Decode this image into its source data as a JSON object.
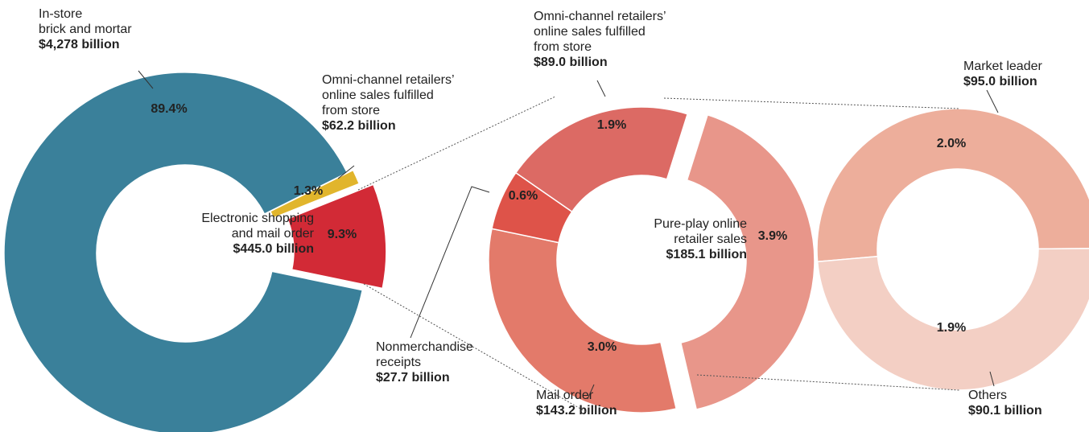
{
  "chart_data": [
    {
      "type": "donut",
      "categories": [
        [
          "Omni-channel retailers’",
          "online sales fulfilled",
          "from store"
        ],
        [
          "Electronic shopping",
          "and mail order"
        ],
        [
          "In-store",
          "brick and mortar"
        ]
      ],
      "values": [
        1.3,
        9.3,
        89.4
      ],
      "value_labels": [
        "1.3%",
        "9.3%",
        "89.4%"
      ],
      "amounts": [
        62.2,
        445.0,
        4278
      ],
      "amount_labels": [
        "$62.2 billion",
        "$445.0 billion",
        "$4,278 billion"
      ],
      "colors": [
        "#e1b52c",
        "#d22a36",
        "#3a809a"
      ]
    },
    {
      "type": "donut",
      "categories": [
        [
          "Pure-play online",
          "retailer sales"
        ],
        [
          "Mail order"
        ],
        [
          "Nonmerchandise",
          "receipts"
        ],
        [
          "Omni-channel retailers’",
          "online sales fulfilled",
          "from store"
        ]
      ],
      "values": [
        3.9,
        3.0,
        0.6,
        1.9
      ],
      "value_labels": [
        "3.9%",
        "3.0%",
        "0.6%",
        "1.9%"
      ],
      "amounts": [
        185.1,
        143.2,
        27.7,
        89.0
      ],
      "amount_labels": [
        "$185.1 billion",
        "$143.2 billion",
        "$27.7 billion",
        "$89.0 billion"
      ],
      "colors": [
        "#e8968a",
        "#e37a6a",
        "#de5349",
        "#dc6a64"
      ]
    },
    {
      "type": "donut",
      "categories": [
        [
          "Market leader"
        ],
        [
          "Others"
        ]
      ],
      "values": [
        2.0,
        1.9
      ],
      "value_labels": [
        "2.0%",
        "1.9%"
      ],
      "amounts": [
        95.0,
        90.1
      ],
      "amount_labels": [
        "$95.0 billion",
        "$90.1 billion"
      ],
      "colors": [
        "#edae9b",
        "#f3cfc4"
      ]
    }
  ]
}
